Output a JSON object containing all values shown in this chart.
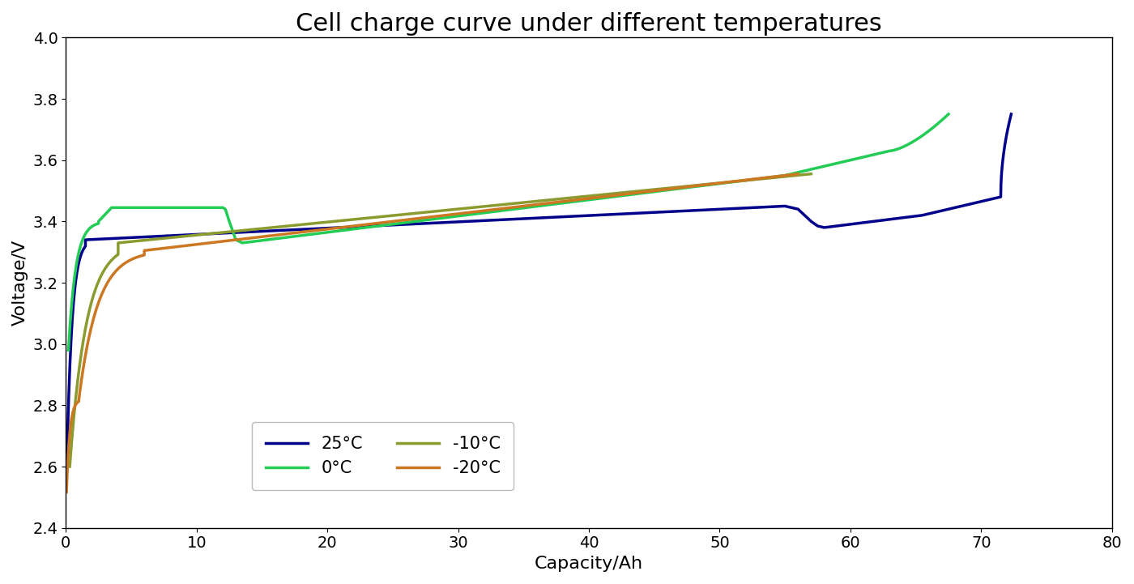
{
  "title": "Cell charge curve under different temperatures",
  "xlabel": "Capacity/Ah",
  "ylabel": "Voltage/V",
  "xlim": [
    0,
    80
  ],
  "ylim": [
    2.4,
    4.0
  ],
  "xticks": [
    0,
    10,
    20,
    30,
    40,
    50,
    60,
    70,
    80
  ],
  "yticks": [
    2.4,
    2.6,
    2.8,
    3.0,
    3.2,
    3.4,
    3.6,
    3.8,
    4.0
  ],
  "colors": {
    "25C": "#00008B",
    "0C": "#22CC55",
    "m10C": "#8B9B30",
    "m20C": "#CC7722"
  },
  "legend_labels": [
    "25°C",
    "0°C",
    "-10°C",
    "-20°C"
  ],
  "background_color": "#FFFFFF",
  "title_fontsize": 22,
  "label_fontsize": 16,
  "tick_fontsize": 14
}
